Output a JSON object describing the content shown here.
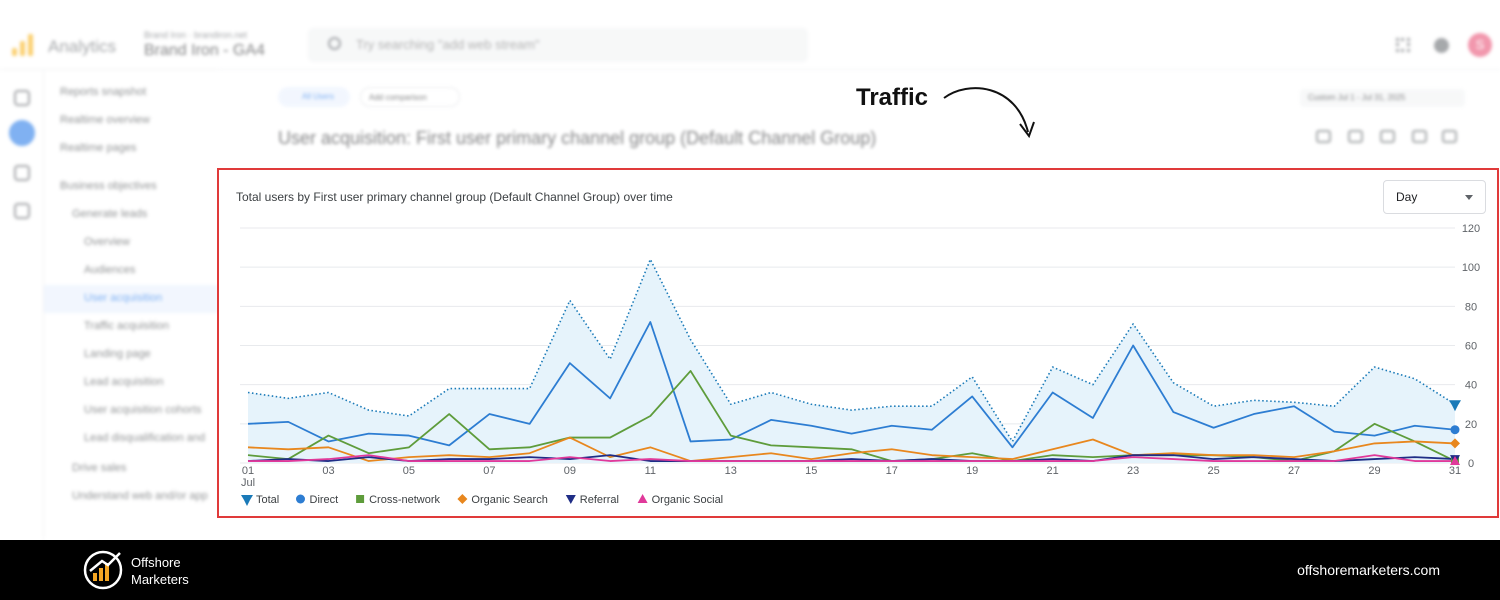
{
  "topbar": {
    "app_name": "Analytics",
    "account": "Brand Iron · brandiron.net",
    "property": "Brand Iron - GA4",
    "search_placeholder": "Try searching \"add web stream\"",
    "avatar_letter": "S"
  },
  "nav": {
    "items": [
      {
        "label": "Reports snapshot"
      },
      {
        "label": "Realtime overview"
      },
      {
        "label": "Realtime pages"
      },
      {
        "label": "Business objectives"
      },
      {
        "label": "Generate leads"
      },
      {
        "label": "Overview"
      },
      {
        "label": "Audiences"
      },
      {
        "label": "User acquisition"
      },
      {
        "label": "Traffic acquisition"
      },
      {
        "label": "Landing page"
      },
      {
        "label": "Lead acquisition"
      },
      {
        "label": "User acquisition cohorts"
      },
      {
        "label": "Lead disqualification and"
      },
      {
        "label": "Drive sales"
      },
      {
        "label": "Understand web and/or app"
      }
    ]
  },
  "report": {
    "chip_all_users": "All Users",
    "chip_add_comparison": "Add comparison",
    "title": "User acquisition: First user primary channel group (Default Channel Group)",
    "date_range": "Custom  Jul 1 - Jul 31, 2025"
  },
  "annotation": {
    "label": "Traffic"
  },
  "chart": {
    "title": "Total users by First user primary channel group (Default Channel Group) over time",
    "period_select": "Day"
  },
  "chart_data": {
    "type": "line",
    "title": "Total users by First user primary channel group (Default Channel Group) over time",
    "x": [
      1,
      2,
      3,
      4,
      5,
      6,
      7,
      8,
      9,
      10,
      11,
      12,
      13,
      14,
      15,
      16,
      17,
      18,
      19,
      20,
      21,
      22,
      23,
      24,
      25,
      26,
      27,
      28,
      29,
      30,
      31
    ],
    "x_tick_labels": [
      "01",
      "03",
      "05",
      "07",
      "09",
      "11",
      "13",
      "15",
      "17",
      "19",
      "21",
      "23",
      "25",
      "27",
      "29",
      "31"
    ],
    "x_tick_values": [
      1,
      3,
      5,
      7,
      9,
      11,
      13,
      15,
      17,
      19,
      21,
      23,
      25,
      27,
      29,
      31
    ],
    "x_sublabel": "Jul",
    "y_tick_labels": [
      "0",
      "20",
      "40",
      "60",
      "80",
      "100",
      "120"
    ],
    "ylim": [
      0,
      120
    ],
    "y_axis_side": "right",
    "grid": true,
    "legend_position": "bottom-left",
    "series": [
      {
        "name": "Total",
        "color": "#1a7ab8",
        "style": "dotted-area",
        "marker": "pin",
        "values": [
          36,
          33,
          36,
          27,
          24,
          38,
          38,
          38,
          83,
          53,
          104,
          63,
          30,
          36,
          30,
          27,
          29,
          29,
          44,
          11,
          49,
          40,
          71,
          41,
          29,
          32,
          31,
          29,
          49,
          43,
          30
        ]
      },
      {
        "name": "Direct",
        "color": "#2d7dd2",
        "style": "solid",
        "marker": "circle",
        "values": [
          20,
          21,
          11,
          15,
          14,
          9,
          25,
          20,
          51,
          33,
          72,
          11,
          12,
          22,
          19,
          15,
          19,
          17,
          34,
          8,
          36,
          23,
          60,
          26,
          18,
          25,
          29,
          16,
          14,
          19,
          17
        ]
      },
      {
        "name": "Cross-network",
        "color": "#5e9c3b",
        "style": "solid",
        "marker": "square",
        "values": [
          4,
          2,
          14,
          5,
          8,
          25,
          7,
          8,
          13,
          13,
          24,
          47,
          14,
          9,
          8,
          7,
          1,
          2,
          5,
          1,
          4,
          3,
          4,
          4,
          4,
          3,
          1,
          6,
          20,
          11,
          1
        ]
      },
      {
        "name": "Organic Search",
        "color": "#e8871e",
        "style": "solid",
        "marker": "diamond",
        "values": [
          8,
          7,
          8,
          1,
          3,
          4,
          3,
          5,
          13,
          3,
          8,
          1,
          3,
          5,
          2,
          5,
          7,
          4,
          3,
          2,
          7,
          12,
          4,
          5,
          4,
          4,
          3,
          6,
          10,
          11,
          10
        ]
      },
      {
        "name": "Referral",
        "color": "#1f2d86",
        "style": "solid",
        "marker": "triangle-down",
        "values": [
          1,
          2,
          1,
          3,
          1,
          2,
          2,
          3,
          2,
          4,
          1,
          1,
          1,
          1,
          1,
          2,
          1,
          2,
          1,
          1,
          2,
          1,
          4,
          4,
          2,
          3,
          2,
          1,
          2,
          3,
          2
        ]
      },
      {
        "name": "Organic Social",
        "color": "#e0399a",
        "style": "solid",
        "marker": "triangle-up",
        "values": [
          1,
          1,
          2,
          4,
          1,
          1,
          1,
          1,
          3,
          1,
          2,
          1,
          1,
          1,
          1,
          1,
          1,
          1,
          1,
          1,
          1,
          1,
          3,
          2,
          1,
          1,
          1,
          1,
          4,
          1,
          1
        ]
      }
    ]
  },
  "footer": {
    "brand_name": "Offshore\nMarketers",
    "website": "offshoremarketers.com"
  }
}
